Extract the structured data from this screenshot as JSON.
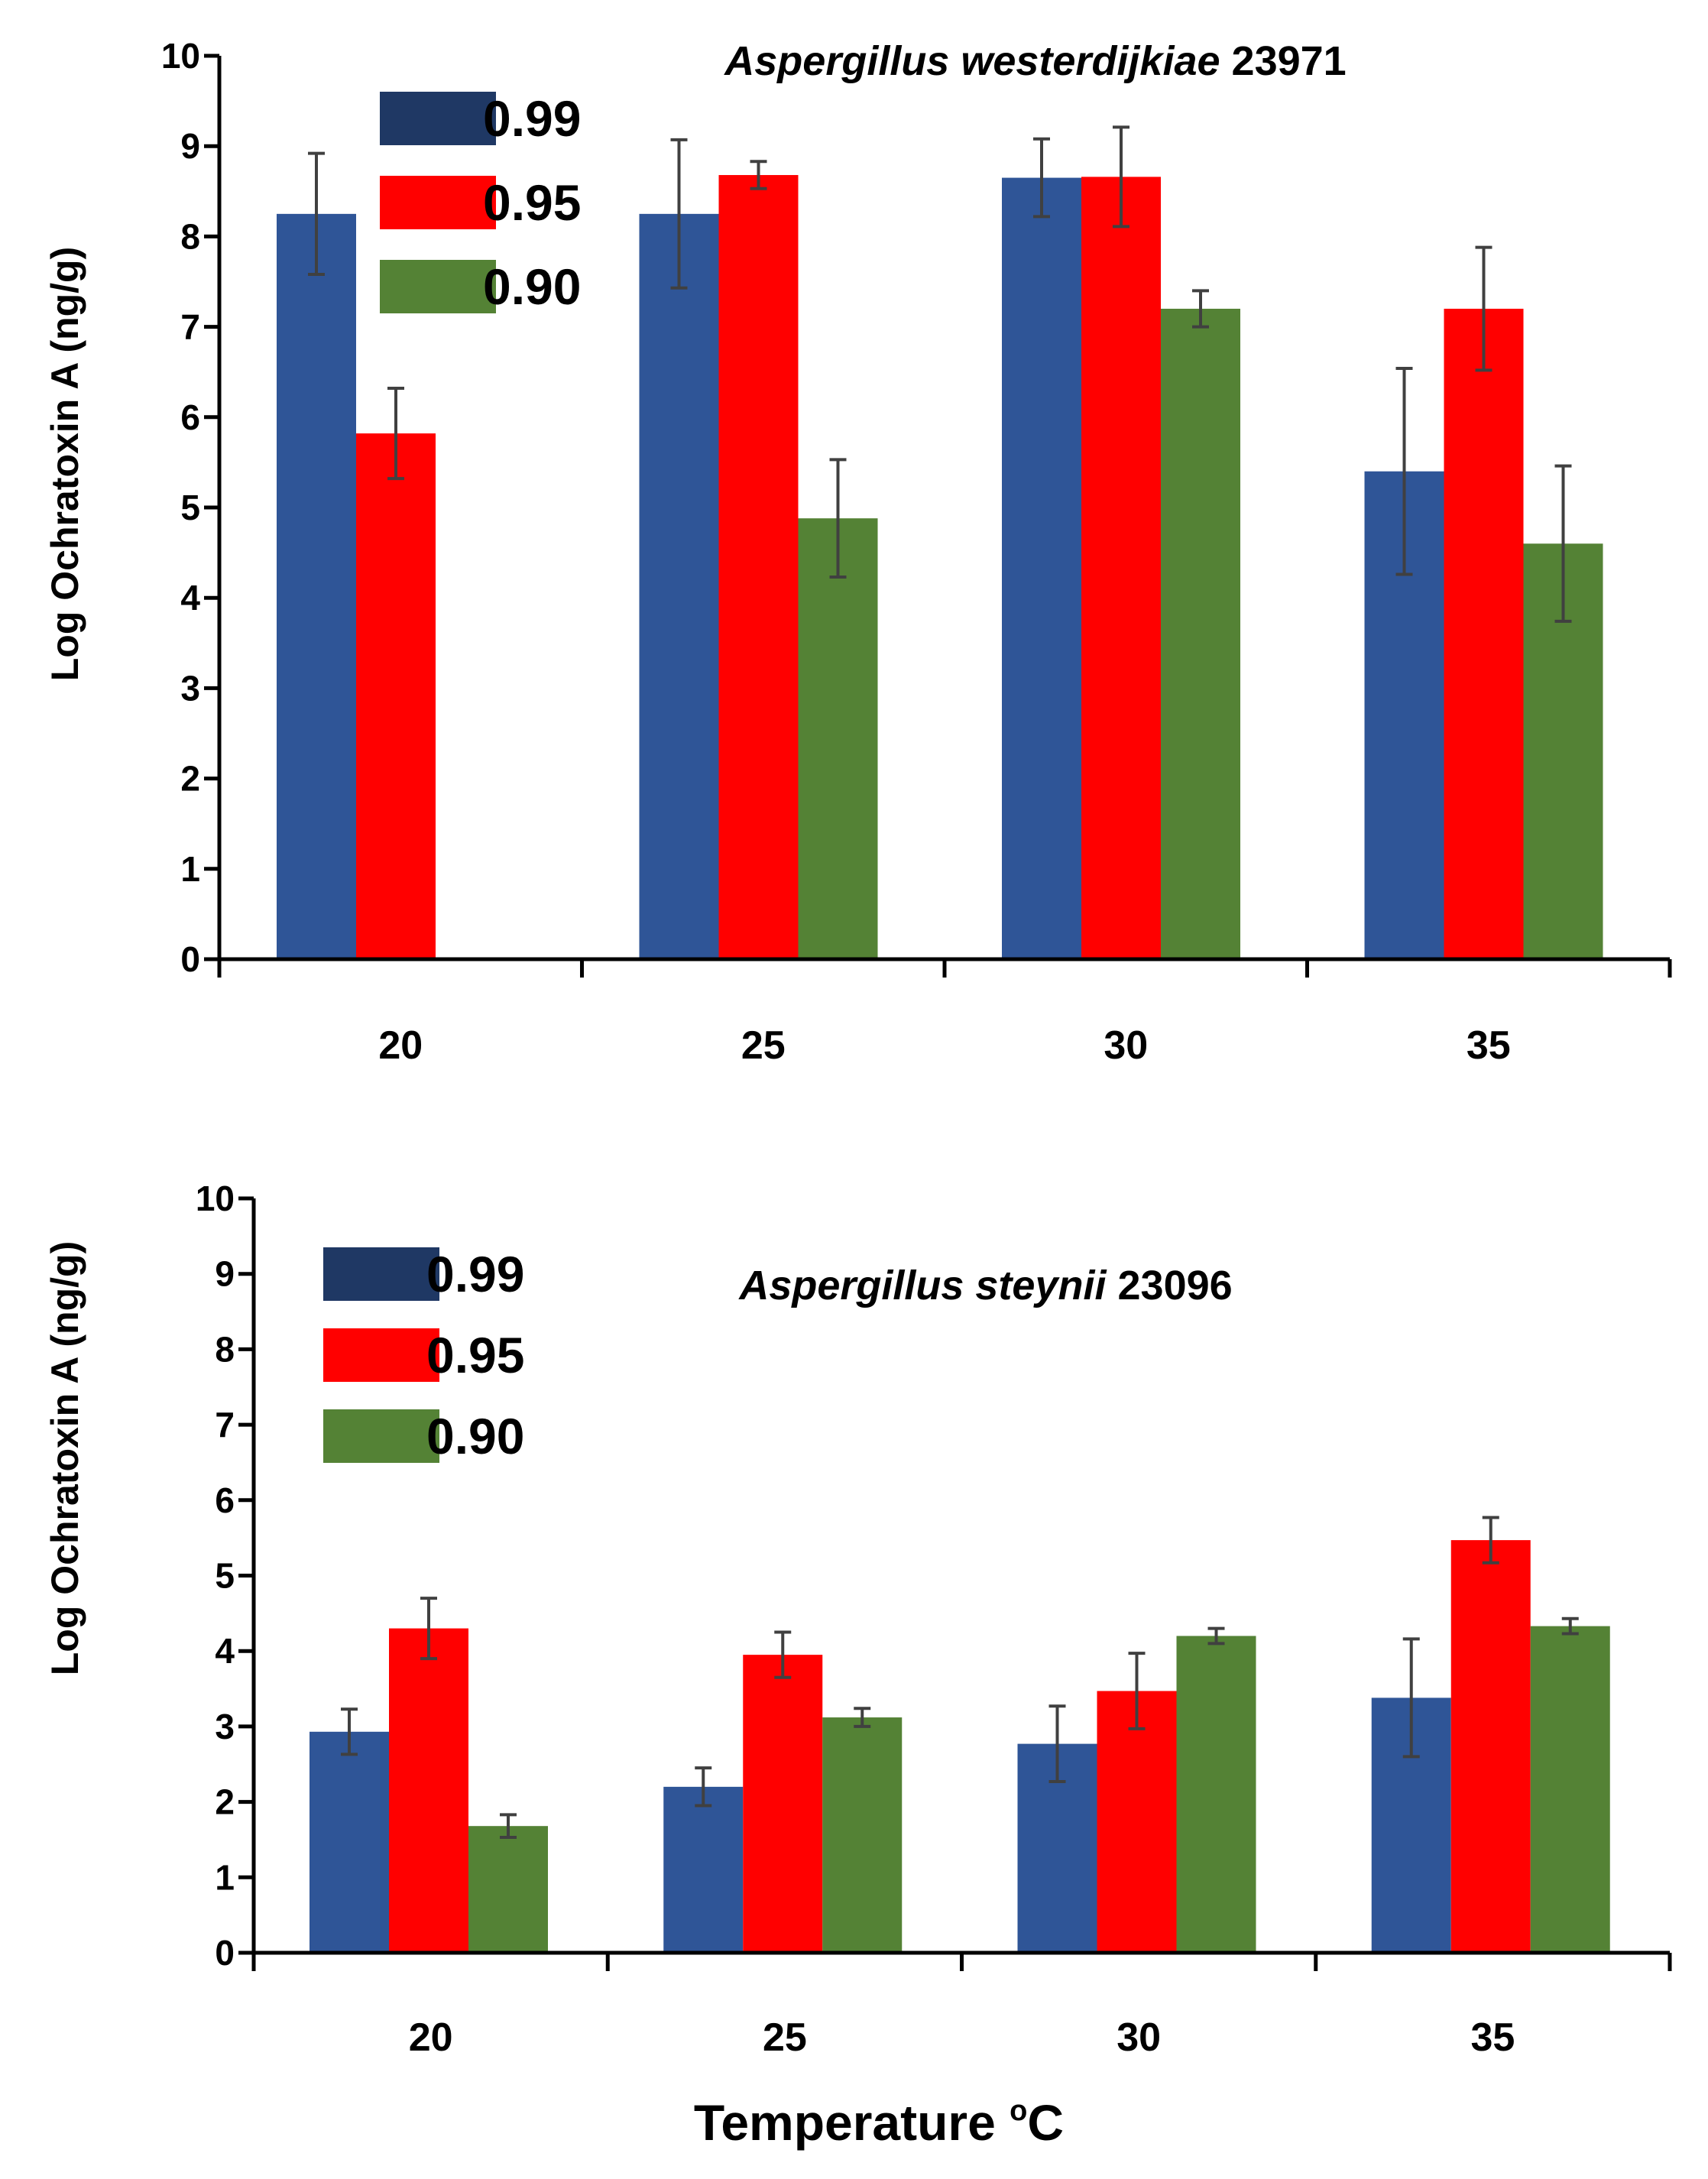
{
  "chart_data": [
    {
      "type": "bar",
      "title_italic": "Aspergillus westerdijkiae",
      "title_plain": "23971",
      "ylabel": "Log Ochratoxin A (ng/g)",
      "xlabel": "",
      "ylim": [
        0,
        10
      ],
      "yticks": [
        "0",
        "1",
        "2",
        "3",
        "4",
        "5",
        "6",
        "7",
        "8",
        "9",
        "10"
      ],
      "categories": [
        "20",
        "25",
        "30",
        "35"
      ],
      "legend_position": "top-left",
      "series": [
        {
          "name": "0.99",
          "color": "#2f5597",
          "values": [
            8.25,
            8.25,
            8.65,
            5.4
          ],
          "errors": [
            0.67,
            0.82,
            0.43,
            1.14
          ]
        },
        {
          "name": "0.95",
          "color": "#ff0000",
          "values": [
            5.82,
            8.68,
            8.66,
            7.2
          ],
          "errors": [
            0.5,
            0.15,
            0.55,
            0.68
          ]
        },
        {
          "name": "0.90",
          "color": "#548235",
          "values": [
            null,
            4.88,
            7.2,
            4.6
          ],
          "errors": [
            null,
            0.65,
            0.2,
            0.86
          ]
        }
      ]
    },
    {
      "type": "bar",
      "title_italic": "Aspergillus steynii",
      "title_plain": "23096",
      "ylabel": "Log Ochratoxin A (ng/g)",
      "xlabel": "Temperature ",
      "xlabel_sup": "o",
      "xlabel_end": "C",
      "ylim": [
        0,
        10
      ],
      "yticks": [
        "0",
        "1",
        "2",
        "3",
        "4",
        "5",
        "6",
        "7",
        "8",
        "9",
        "10"
      ],
      "categories": [
        "20",
        "25",
        "30",
        "35"
      ],
      "legend_position": "top-left",
      "series": [
        {
          "name": "0.99",
          "color": "#2f5597",
          "values": [
            2.93,
            2.2,
            2.77,
            3.38
          ],
          "errors": [
            0.3,
            0.25,
            0.5,
            0.78
          ]
        },
        {
          "name": "0.95",
          "color": "#ff0000",
          "values": [
            4.3,
            3.95,
            3.47,
            5.47
          ],
          "errors": [
            0.4,
            0.3,
            0.5,
            0.3
          ]
        },
        {
          "name": "0.90",
          "color": "#548235",
          "values": [
            1.68,
            3.12,
            4.2,
            4.33
          ],
          "errors": [
            0.15,
            0.12,
            0.1,
            0.1
          ]
        }
      ]
    }
  ],
  "legend_swatch_colors": [
    "#1f3864",
    "#ff0000",
    "#548235"
  ]
}
